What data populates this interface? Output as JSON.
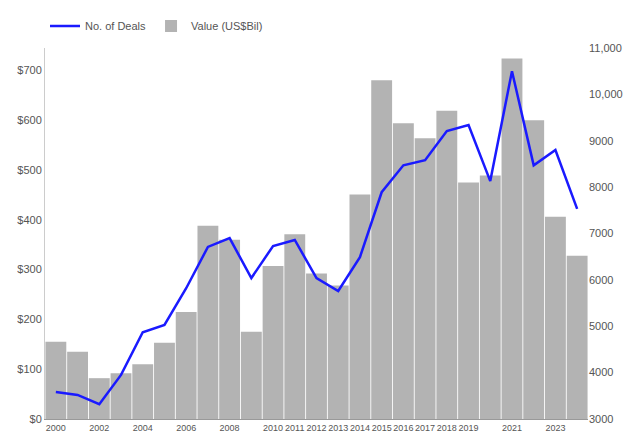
{
  "chart_data": {
    "type": "bar",
    "categories": [
      "2000",
      null,
      "2002",
      null,
      "2004",
      null,
      "2006",
      null,
      "2008",
      null,
      "2010",
      "2011",
      "2012",
      "2013",
      "2014",
      "2015",
      "2016",
      "2017",
      "2018",
      "2019",
      null,
      "2021",
      null,
      "2023",
      null
    ],
    "series": [
      {
        "name": "No. of Deals",
        "type": "line",
        "color": "#1a1aff",
        "axis": "y2",
        "values": [
          3580,
          3520,
          3320,
          3950,
          4870,
          5030,
          5820,
          6710,
          6900,
          6040,
          6730,
          6860,
          6040,
          5760,
          6490,
          7890,
          8470,
          8580,
          9210,
          9340,
          8130,
          10500,
          8470,
          8800,
          7530
        ]
      },
      {
        "name": "Value (US$Bil)",
        "type": "bar",
        "color": "#b3b3b3",
        "values": [
          155,
          135,
          82,
          92,
          110,
          153,
          215,
          388,
          360,
          175,
          307,
          371,
          292,
          268,
          451,
          680,
          594,
          564,
          619,
          475,
          489,
          724,
          600,
          406,
          328
        ]
      }
    ],
    "ylim": [
      0,
      745
    ],
    "yticks": [
      {
        "value": 0,
        "label": "$0"
      },
      {
        "value": 100,
        "label": "$100"
      },
      {
        "value": 200,
        "label": "$200"
      },
      {
        "value": 300,
        "label": "$300"
      },
      {
        "value": 400,
        "label": "$400"
      },
      {
        "value": 500,
        "label": "$500"
      },
      {
        "value": 600,
        "label": "$600"
      },
      {
        "value": 700,
        "label": "$700"
      }
    ],
    "y2lim": [
      3000,
      11000
    ],
    "y2ticks": [
      3000,
      4000,
      5000,
      6000,
      7000,
      8000,
      9000,
      {
        "value": 10000,
        "label": "10,000"
      },
      {
        "value": 11000,
        "label": "11,000"
      }
    ],
    "legend": "top left",
    "grid": false
  }
}
